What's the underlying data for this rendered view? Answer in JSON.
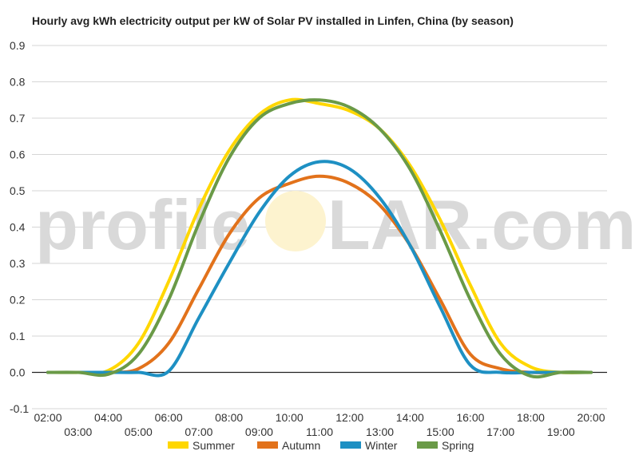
{
  "chart_data": {
    "type": "line",
    "title": "Hourly avg kWh electricity output per kW of Solar PV installed in Linfen, China (by season)",
    "xlabel": "",
    "ylabel": "",
    "x": [
      "02:00",
      "03:00",
      "04:00",
      "05:00",
      "06:00",
      "07:00",
      "08:00",
      "09:00",
      "10:00",
      "11:00",
      "12:00",
      "13:00",
      "14:00",
      "15:00",
      "16:00",
      "17:00",
      "18:00",
      "19:00",
      "20:00"
    ],
    "ylim": [
      -0.1,
      0.9
    ],
    "yticks": [
      -0.1,
      0.0,
      0.1,
      0.2,
      0.3,
      0.4,
      0.5,
      0.6,
      0.7,
      0.8,
      0.9
    ],
    "ytick_labels": [
      "-0.1",
      "0.0",
      "0.1",
      "0.2",
      "0.3",
      "0.4",
      "0.5",
      "0.6",
      "0.7",
      "0.8",
      "0.9"
    ],
    "grid": true,
    "legend_position": "bottom",
    "watermark": {
      "left": "profile",
      "right": "LAR.com"
    },
    "series": [
      {
        "name": "Summer",
        "color": "#FFD700",
        "values": [
          0,
          0,
          0.005,
          0.08,
          0.25,
          0.45,
          0.61,
          0.71,
          0.75,
          0.74,
          0.72,
          0.67,
          0.57,
          0.42,
          0.24,
          0.08,
          0.015,
          0,
          0
        ]
      },
      {
        "name": "Autumn",
        "color": "#E2721B",
        "values": [
          0,
          0,
          0,
          0.01,
          0.08,
          0.23,
          0.38,
          0.48,
          0.52,
          0.54,
          0.52,
          0.46,
          0.35,
          0.2,
          0.05,
          0.01,
          0,
          0,
          0
        ]
      },
      {
        "name": "Winter",
        "color": "#1E90C3",
        "values": [
          0,
          0,
          0,
          0,
          0.003,
          0.15,
          0.3,
          0.44,
          0.54,
          0.58,
          0.56,
          0.48,
          0.35,
          0.18,
          0.02,
          0,
          0,
          0,
          0
        ]
      },
      {
        "name": "Spring",
        "color": "#6A9A47",
        "values": [
          0,
          0,
          -0.005,
          0.05,
          0.2,
          0.41,
          0.59,
          0.7,
          0.74,
          0.75,
          0.73,
          0.67,
          0.56,
          0.39,
          0.2,
          0.05,
          -0.01,
          0,
          0
        ]
      }
    ]
  }
}
